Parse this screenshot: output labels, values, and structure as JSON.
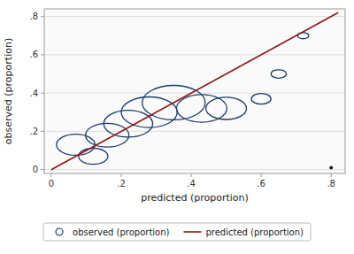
{
  "chart_data": {
    "type": "bubble",
    "x_label": "predicted (proportion)",
    "y_label": "observed (proportion)",
    "series": [
      {
        "name": "observed (proportion)",
        "color": "#1a3a6b",
        "x": [
          0.07,
          0.12,
          0.16,
          0.22,
          0.28,
          0.35,
          0.43,
          0.5,
          0.6,
          0.65,
          0.72
        ],
        "values": [
          0.13,
          0.07,
          0.18,
          0.24,
          0.3,
          0.35,
          0.32,
          0.32,
          0.37,
          0.5,
          0.7
        ],
        "radius": [
          0.055,
          0.042,
          0.062,
          0.07,
          0.08,
          0.09,
          0.072,
          0.058,
          0.028,
          0.022,
          0.016
        ]
      },
      {
        "name": "predicted (proportion)",
        "type": "line",
        "color": "#8b1a1a",
        "x": [
          0.0,
          0.82
        ],
        "values": [
          0.0,
          0.82
        ]
      },
      {
        "type": "scatter",
        "color": "#1a1a1a",
        "x": [
          0.8
        ],
        "values": [
          0.01
        ]
      }
    ],
    "xlim": [
      -0.02,
      0.84
    ],
    "ylim": [
      -0.02,
      0.84
    ],
    "xticks": [
      0,
      {
        "value": 0.2,
        "label": ".2"
      },
      {
        "value": 0.4,
        "label": ".4"
      },
      {
        "value": 0.6,
        "label": ".6"
      },
      {
        "value": 0.8,
        "label": ".8"
      }
    ],
    "yticks": [
      0,
      {
        "value": 0.2,
        "label": ".2"
      },
      {
        "value": 0.4,
        "label": ".4"
      },
      {
        "value": 0.6,
        "label": ".6"
      },
      {
        "value": 0.8,
        "label": ".8"
      }
    ],
    "grid": "y",
    "legend": "bottom"
  }
}
